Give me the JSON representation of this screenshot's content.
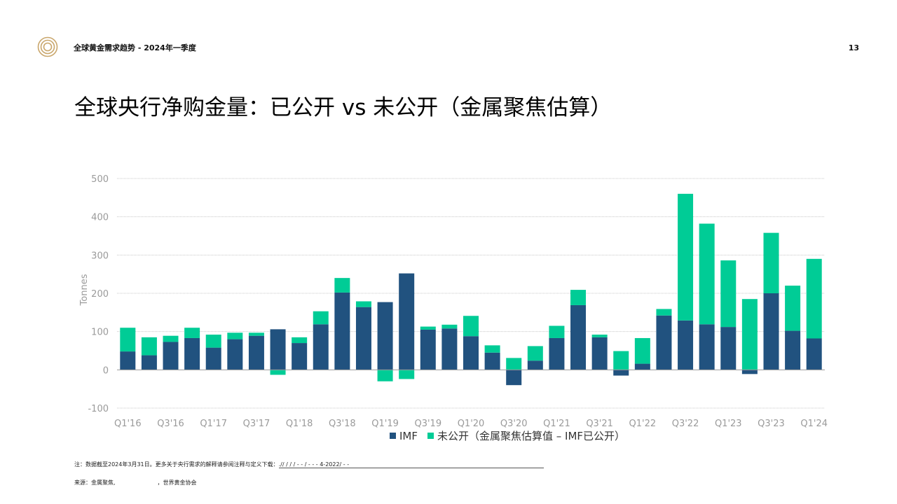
{
  "header": {
    "report_title": "全球黄金需求趋势 - 2024年一季度",
    "page_number": "13",
    "logo_icon": "concentric-circles-logo"
  },
  "slide_title": "全球央行净购金量：已公开 vs 未公开（金属聚焦估算）",
  "footer": {
    "note_prefix": "注：数据截至2024年3月31日。更多关于央行需求的解释请参阅注释与定义下载：",
    "note_link": "   .//              /         /         /      -         -       /      -          -        -  4-2022/       -     -",
    "source_prefix": "来源：金属聚焦,",
    "source_suffix": "，世界黄金协会"
  },
  "chart_data": {
    "type": "bar",
    "stacked": true,
    "ylabel": "Tonnes",
    "ylim": [
      -100,
      500
    ],
    "yticks": [
      -100,
      0,
      100,
      200,
      300,
      400,
      500
    ],
    "grid": true,
    "legend_position": "bottom",
    "categories": [
      "Q1'16",
      "Q2'16",
      "Q3'16",
      "Q4'16",
      "Q1'17",
      "Q2'17",
      "Q3'17",
      "Q4'17",
      "Q1'18",
      "Q2'18",
      "Q3'18",
      "Q4'18",
      "Q1'19",
      "Q2'19",
      "Q3'19",
      "Q4'19",
      "Q1'20",
      "Q2'20",
      "Q3'20",
      "Q4'20",
      "Q1'21",
      "Q2'21",
      "Q3'21",
      "Q4'21",
      "Q1'22",
      "Q2'22",
      "Q3'22",
      "Q4'22",
      "Q1'23",
      "Q2'23",
      "Q3'23",
      "Q4'23",
      "Q1'24"
    ],
    "visible_tick_labels": [
      "Q1'16",
      "Q3'16",
      "Q1'17",
      "Q3'17",
      "Q1'18",
      "Q3'18",
      "Q1'19",
      "Q3'19",
      "Q1'20",
      "Q3'20",
      "Q1'21",
      "Q3'21",
      "Q1'22",
      "Q3'22",
      "Q1'23",
      "Q3'23",
      "Q1'24"
    ],
    "series": [
      {
        "name": "IMF",
        "color": "#21527f",
        "values": [
          48,
          38,
          73,
          83,
          58,
          80,
          89,
          106,
          70,
          119,
          202,
          164,
          177,
          252,
          105,
          108,
          88,
          45,
          -40,
          24,
          83,
          169,
          85,
          -15,
          16,
          142,
          129,
          119,
          112,
          -11,
          200,
          102,
          82
        ]
      },
      {
        "name": "未公开（金属聚焦估算值 – IMF已公开）",
        "color": "#00cc96",
        "values": [
          62,
          47,
          16,
          27,
          34,
          17,
          8,
          -13,
          15,
          34,
          38,
          15,
          -30,
          -24,
          8,
          10,
          53,
          19,
          31,
          38,
          32,
          40,
          7,
          49,
          67,
          17,
          331,
          263,
          174,
          185,
          158,
          118,
          208
        ]
      }
    ]
  }
}
